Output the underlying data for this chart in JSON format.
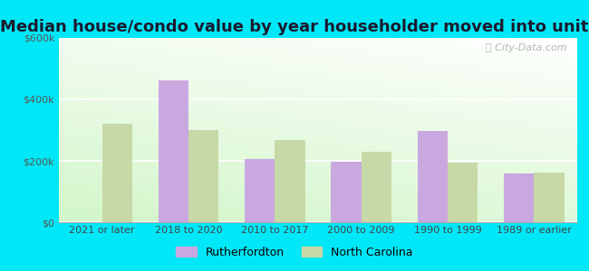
{
  "title": "Median house/condo value by year householder moved into unit",
  "categories": [
    "2021 or later",
    "2018 to 2020",
    "2010 to 2017",
    "2000 to 2009",
    "1990 to 1999",
    "1989 or earlier"
  ],
  "rutherfordton": [
    0,
    462000,
    207000,
    196000,
    298000,
    160000
  ],
  "north_carolina": [
    322000,
    300000,
    268000,
    228000,
    193000,
    163000
  ],
  "bar_color_ruth": "#c9a8e0",
  "bar_color_nc": "#c8d9a8",
  "ylim": [
    0,
    600000
  ],
  "yticks": [
    0,
    200000,
    400000,
    600000
  ],
  "ytick_labels": [
    "$0",
    "$200k",
    "$400k",
    "$600k"
  ],
  "background_color_outer": "#00e8f8",
  "legend_ruth": "Rutherfordton",
  "legend_nc": "North Carolina",
  "watermark": "City-Data.com",
  "title_fontsize": 13,
  "tick_fontsize": 8,
  "legend_fontsize": 9
}
